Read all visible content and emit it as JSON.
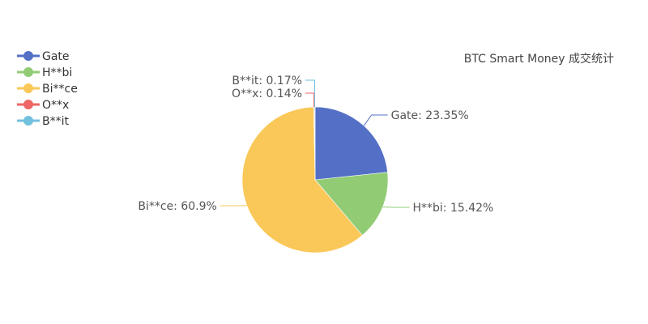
{
  "chart_data": {
    "type": "pie",
    "title": "BTC Smart Money 成交统计",
    "legend_position": "top-left",
    "slices": [
      {
        "name": "Gate",
        "value": 23.35,
        "label": "Gate: 23.35%",
        "color": "#5470c6"
      },
      {
        "name": "H**bi",
        "value": 15.42,
        "label": "H**bi: 15.42%",
        "color": "#91cc75"
      },
      {
        "name": "Bi**ce",
        "value": 60.9,
        "label": "Bi**ce: 60.9%",
        "color": "#fac858"
      },
      {
        "name": "O**x",
        "value": 0.14,
        "label": "O**x: 0.14%",
        "color": "#ee6666"
      },
      {
        "name": "B**it",
        "value": 0.17,
        "label": "B**it: 0.17%",
        "color": "#73c0de"
      }
    ]
  }
}
